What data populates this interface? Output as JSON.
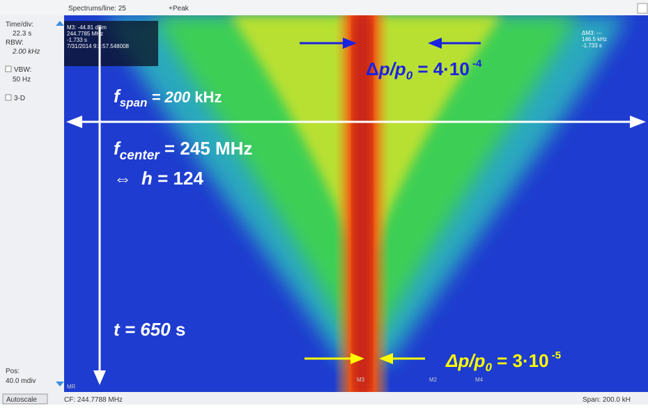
{
  "toolbar": {
    "spectrums_per_line": "Spectrums/line: 25",
    "detector": "+Peak"
  },
  "side_panel": {
    "time_div_label": "Time/div:",
    "time_div_value": "22.3 s",
    "rbw_label": "RBW:",
    "rbw_value": "2.00 kHz",
    "vbw_label": "VBW:",
    "vbw_value": "50 Hz",
    "three_d": "3-D",
    "pos_label": "Pos:",
    "pos_value": "40.0 mdiv",
    "autoscale": "Autoscale"
  },
  "status_bar": {
    "center_frequency": "CF: 244.7788 MHz",
    "span": "Span: 200.0 kH"
  },
  "marker_readout": {
    "level": "M3: -44.81 dBm",
    "frequency": "244.7785 MHz",
    "time": "-1.733 s",
    "timestamp": "7/31/2014 9:3:57.548008"
  },
  "delta_readout": {
    "label": "ΔM3: ---",
    "frequency": "146.5 kHz",
    "time": "-1.733 s"
  },
  "markers": [
    "MR",
    "M3",
    "M2",
    "M4"
  ],
  "annotations": {
    "top_spread": {
      "delta": "Δ",
      "p": "p/p",
      "sub": "0",
      "eq": " = 4·10",
      "sup": " -4"
    },
    "span": {
      "f": "f",
      "sub": "span",
      "eq": " = 200",
      "unit": " kHz"
    },
    "center": {
      "f": "f",
      "sub": "center",
      "eq": " =  245 MHz"
    },
    "harmonic": {
      "arrow": "⇔",
      "h": "h",
      "eq": " = 124"
    },
    "time": {
      "t": "t = 650",
      "unit": " s"
    },
    "bottom_spread": {
      "delta": "Δp/p",
      "sub": "0",
      "eq": " = 3·10",
      "sup": " -5"
    }
  }
}
